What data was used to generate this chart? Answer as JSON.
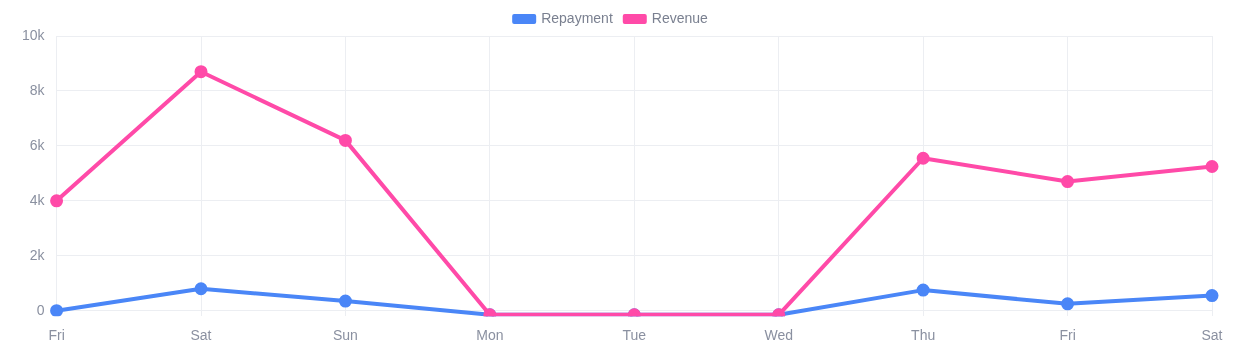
{
  "chart_data": {
    "type": "line",
    "categories": [
      "Fri",
      "Sat",
      "Sun",
      "Mon",
      "Tue",
      "Wed",
      "Thu",
      "Fri",
      "Sat"
    ],
    "series": [
      {
        "name": "Repayment",
        "color": "#4a86f7",
        "values": [
          0,
          800,
          350,
          -150,
          -150,
          -150,
          750,
          250,
          550
        ]
      },
      {
        "name": "Revenue",
        "color": "#ff4aa8",
        "values": [
          4000,
          8700,
          6200,
          -150,
          -150,
          -150,
          5550,
          4700,
          5250
        ]
      }
    ],
    "ylim": [
      -200,
      10000
    ],
    "yticks": [
      {
        "value": 0,
        "label": "0"
      },
      {
        "value": 2000,
        "label": "2k"
      },
      {
        "value": 4000,
        "label": "4k"
      },
      {
        "value": 6000,
        "label": "6k"
      },
      {
        "value": 8000,
        "label": "8k"
      },
      {
        "value": 10000,
        "label": "10k"
      }
    ],
    "grid": true,
    "legend": "top",
    "marker": "circle",
    "line_style": "solid"
  }
}
